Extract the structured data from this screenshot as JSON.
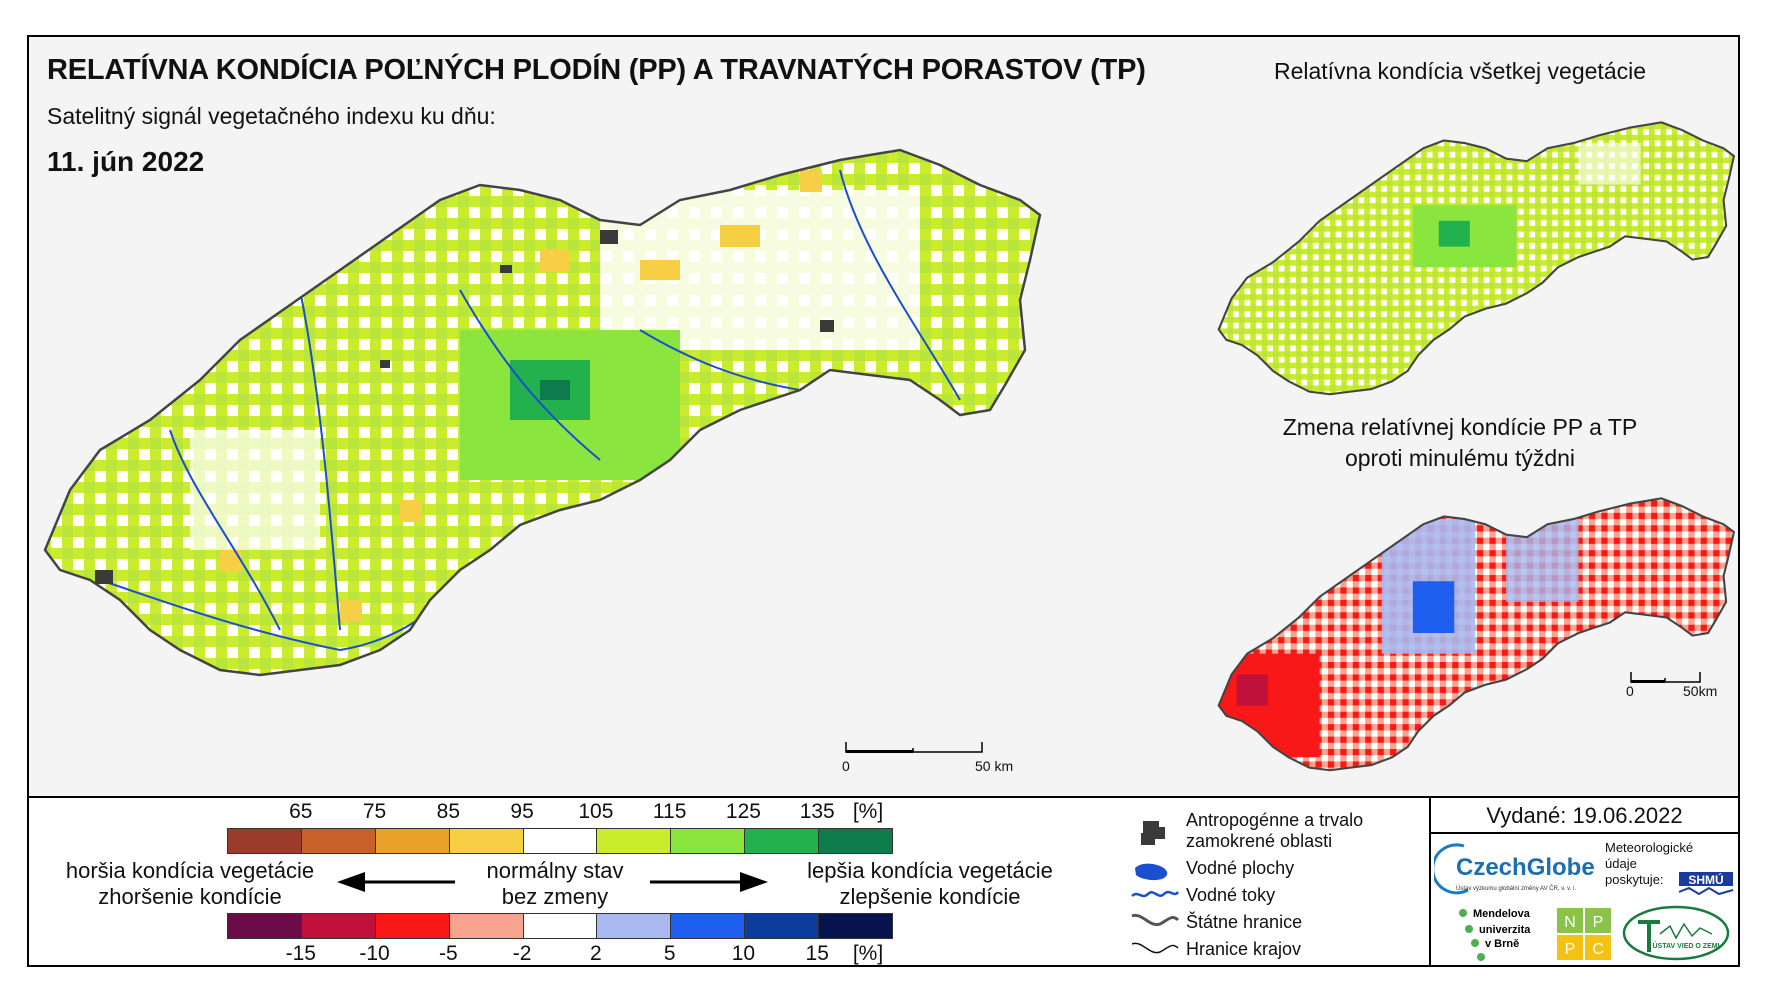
{
  "title": "RELATÍVNA KONDÍCIA POĽNÝCH PLODÍN (PP) A TRAVNATÝCH PORASTOV (TP)",
  "subtitle": "Satelitný signál vegetačného indexu ku dňu:",
  "date": "11. jún 2022",
  "inset1_title": "Relatívna kondícia všetkej vegetácie",
  "inset2_title_line1": "Zmena relatívnej kondície PP a TP",
  "inset2_title_line2": "oproti minulému týždni",
  "scale_main": {
    "zero": "0",
    "end": "50 km"
  },
  "scale_inset": {
    "zero": "0",
    "end": "50km"
  },
  "legend_top": {
    "ticks": [
      "65",
      "75",
      "85",
      "95",
      "105",
      "115",
      "125",
      "135"
    ],
    "unit": "[%]",
    "colors": [
      "#9b3b2a",
      "#c8602a",
      "#e8a12b",
      "#f7cf45",
      "#ffffff",
      "#cbec2c",
      "#8ae63e",
      "#22b14c",
      "#0d7c4a"
    ]
  },
  "legend_bottom": {
    "ticks": [
      "-15",
      "-10",
      "-5",
      "-2",
      "2",
      "5",
      "10",
      "15"
    ],
    "unit": "[%]",
    "colors": [
      "#6b0b47",
      "#c0103c",
      "#f81818",
      "#f7a38e",
      "#ffffff",
      "#a8b8f0",
      "#1f5ff0",
      "#0c3d9c",
      "#06134e"
    ]
  },
  "legend_labels": {
    "worse_line1": "horšia kondícia vegetácie",
    "worse_line2": "zhoršenie kondície",
    "normal_line1": "normálny stav",
    "normal_line2": "bez zmeny",
    "better_line1": "lepšia kondícia vegetácie",
    "better_line2": "zlepšenie kondície"
  },
  "symbols": [
    {
      "icon": "urban-area-icon",
      "label_line1": "Antropogénne a trvalo",
      "label_line2": "zamokrené oblasti"
    },
    {
      "icon": "water-body-icon",
      "label_line1": "Vodné plochy",
      "label_line2": ""
    },
    {
      "icon": "river-icon",
      "label_line1": "Vodné toky",
      "label_line2": ""
    },
    {
      "icon": "state-border-icon",
      "label_line1": "Štátne hranice",
      "label_line2": ""
    },
    {
      "icon": "region-border-icon",
      "label_line1": "Hranice krajov",
      "label_line2": ""
    }
  ],
  "issued": "Vydané: 19.06.2022",
  "logos": {
    "czechglobe": "CzechGlobe",
    "czechglobe_sub": "Ústav výzkumu globální změny AV ČR, v. v. i.",
    "shmu_text1": "Meteorologické",
    "shmu_text2": "údaje",
    "shmu_text3": "poskytuje:",
    "shmu": "SHMÚ",
    "mendel1": "Mendelova",
    "mendel2": "univerzita",
    "mendel3": "v Brně",
    "nppc": [
      "N",
      "P",
      "P",
      "C"
    ],
    "uvz": "ÚSTAV VIED O ZEMI"
  },
  "colors": {
    "frame_bg": "#f4f4f4",
    "river": "#1a4fd0",
    "urban": "#3a3a3a"
  }
}
